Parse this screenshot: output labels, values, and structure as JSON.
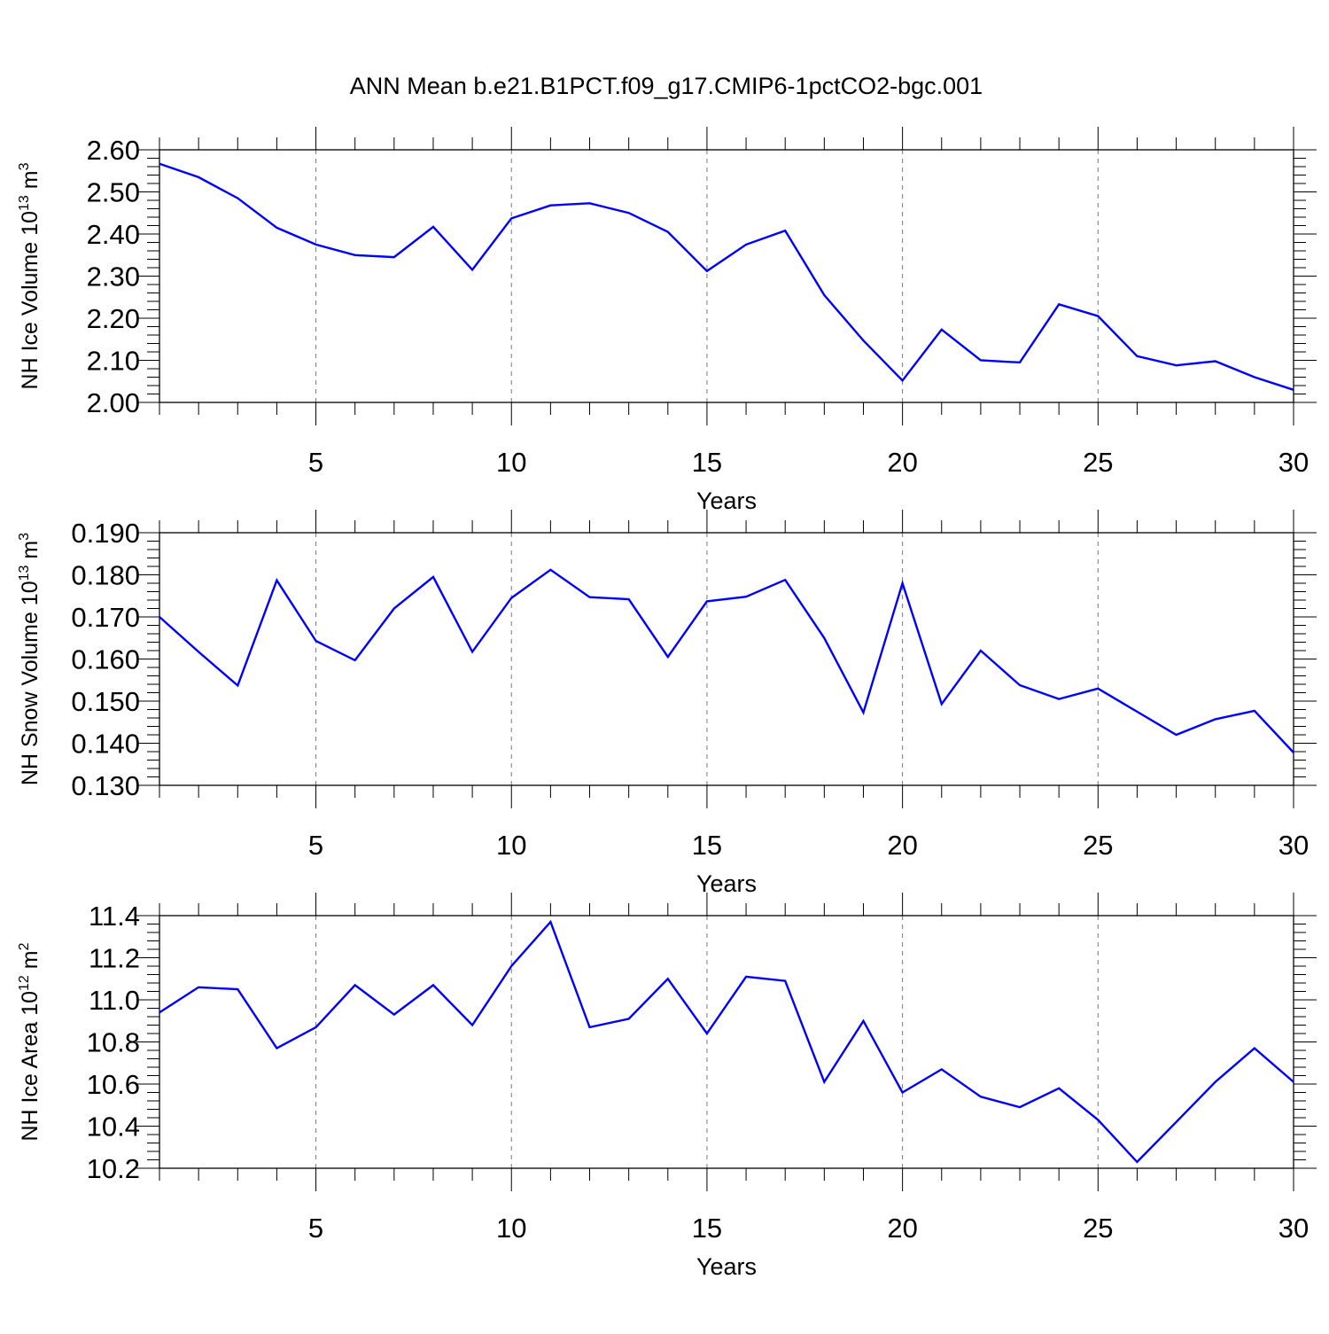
{
  "figure_title": "ANN Mean b.e21.B1PCT.f09_g17.CMIP6-1pctCO2-bgc.001",
  "chart_data": [
    {
      "type": "line",
      "xlabel": "Years",
      "ylabel": {
        "base": "NH Ice Volume 10",
        "exp": "13",
        "unit": " m",
        "unit_exp": "3"
      },
      "xlim": [
        1,
        30
      ],
      "ylim": [
        2.0,
        2.6
      ],
      "xticks": [
        5,
        10,
        15,
        20,
        25,
        30
      ],
      "yticks": [
        "2.00",
        "2.10",
        "2.20",
        "2.30",
        "2.40",
        "2.50",
        "2.60"
      ],
      "yticks_values": [
        2.0,
        2.1,
        2.2,
        2.3,
        2.4,
        2.5,
        2.6
      ],
      "grid": "vertical dashed at major x ticks",
      "color": "#0000ff",
      "x": [
        1,
        2,
        3,
        4,
        5,
        6,
        7,
        8,
        9,
        10,
        11,
        12,
        13,
        14,
        15,
        16,
        17,
        18,
        19,
        20,
        21,
        22,
        23,
        24,
        25,
        26,
        27,
        28,
        29,
        30
      ],
      "values": [
        2.567,
        2.535,
        2.485,
        2.415,
        2.375,
        2.35,
        2.345,
        2.417,
        2.315,
        2.437,
        2.468,
        2.473,
        2.45,
        2.405,
        2.312,
        2.375,
        2.408,
        2.255,
        2.147,
        2.052,
        2.173,
        2.1,
        2.095,
        2.233,
        2.205,
        2.11,
        2.088,
        2.098,
        2.06,
        2.03
      ]
    },
    {
      "type": "line",
      "xlabel": "Years",
      "ylabel": {
        "base": "NH Snow Volume 10",
        "exp": "13",
        "unit": " m",
        "unit_exp": "3"
      },
      "xlim": [
        1,
        30
      ],
      "ylim": [
        0.13,
        0.19
      ],
      "xticks": [
        5,
        10,
        15,
        20,
        25,
        30
      ],
      "yticks": [
        "0.130",
        "0.140",
        "0.150",
        "0.160",
        "0.170",
        "0.180",
        "0.190"
      ],
      "yticks_values": [
        0.13,
        0.14,
        0.15,
        0.16,
        0.17,
        0.18,
        0.19
      ],
      "grid": "vertical dashed at major x ticks",
      "color": "#0000ff",
      "x": [
        1,
        2,
        3,
        4,
        5,
        6,
        7,
        8,
        9,
        10,
        11,
        12,
        13,
        14,
        15,
        16,
        17,
        18,
        19,
        20,
        21,
        22,
        23,
        24,
        25,
        26,
        27,
        28,
        29,
        30
      ],
      "values": [
        0.17,
        0.1617,
        0.1537,
        0.1787,
        0.1643,
        0.1597,
        0.172,
        0.1795,
        0.1617,
        0.1745,
        0.1812,
        0.1747,
        0.1742,
        0.1605,
        0.1737,
        0.1748,
        0.1788,
        0.165,
        0.1473,
        0.178,
        0.1493,
        0.162,
        0.1538,
        0.1505,
        0.153,
        0.1475,
        0.142,
        0.1457,
        0.1477,
        0.1378
      ]
    },
    {
      "type": "line",
      "xlabel": "Years",
      "ylabel": {
        "base": "NH Ice Area 10",
        "exp": "12",
        "unit": " m",
        "unit_exp": "2"
      },
      "xlim": [
        1,
        30
      ],
      "ylim": [
        10.2,
        11.4
      ],
      "xticks": [
        5,
        10,
        15,
        20,
        25,
        30
      ],
      "yticks": [
        "10.2",
        "10.4",
        "10.6",
        "10.8",
        "11.0",
        "11.2",
        "11.4"
      ],
      "yticks_values": [
        10.2,
        10.4,
        10.6,
        10.8,
        11.0,
        11.2,
        11.4
      ],
      "grid": "vertical dashed at major x ticks",
      "color": "#0000ff",
      "x": [
        1,
        2,
        3,
        4,
        5,
        6,
        7,
        8,
        9,
        10,
        11,
        12,
        13,
        14,
        15,
        16,
        17,
        18,
        19,
        20,
        21,
        22,
        23,
        24,
        25,
        26,
        27,
        28,
        29,
        30
      ],
      "values": [
        10.94,
        11.06,
        11.05,
        10.77,
        10.87,
        11.07,
        10.93,
        11.07,
        10.88,
        11.16,
        11.37,
        10.87,
        10.91,
        11.1,
        10.84,
        11.11,
        11.09,
        10.61,
        10.9,
        10.56,
        10.67,
        10.54,
        10.49,
        10.58,
        10.43,
        10.23,
        10.42,
        10.61,
        10.77,
        10.61
      ]
    }
  ]
}
